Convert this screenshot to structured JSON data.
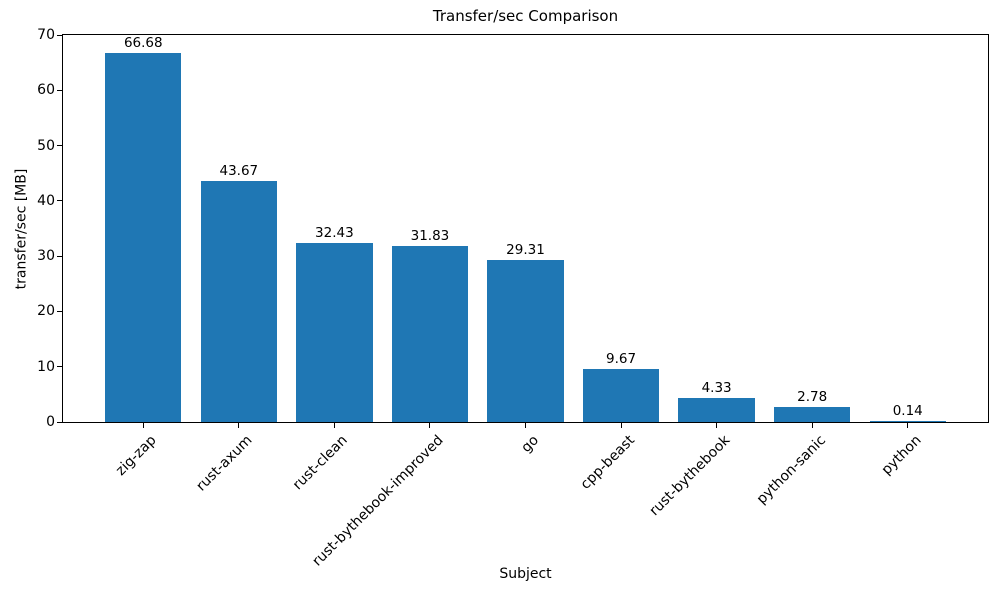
{
  "chart_data": {
    "type": "bar",
    "title": "Transfer/sec Comparison",
    "xlabel": "Subject",
    "ylabel": "transfer/sec [MB]",
    "categories": [
      "zig-zap",
      "rust-axum",
      "rust-clean",
      "rust-bythebook-improved",
      "go",
      "cpp-beast",
      "rust-bythebook",
      "python-sanic",
      "python"
    ],
    "values": [
      66.68,
      43.67,
      32.43,
      31.83,
      29.31,
      9.67,
      4.33,
      2.78,
      0.14
    ],
    "bar_labels": [
      "66.68",
      "43.67",
      "32.43",
      "31.83",
      "29.31",
      "9.67",
      "4.33",
      "2.78",
      "0.14"
    ],
    "ylim": [
      0,
      70
    ],
    "yticks": [
      0,
      10,
      20,
      30,
      40,
      50,
      60,
      70
    ],
    "bar_color": "#1f77b4",
    "text_color": "#000000",
    "grid": false,
    "legend": null,
    "x_tick_rotation_deg": 45
  }
}
